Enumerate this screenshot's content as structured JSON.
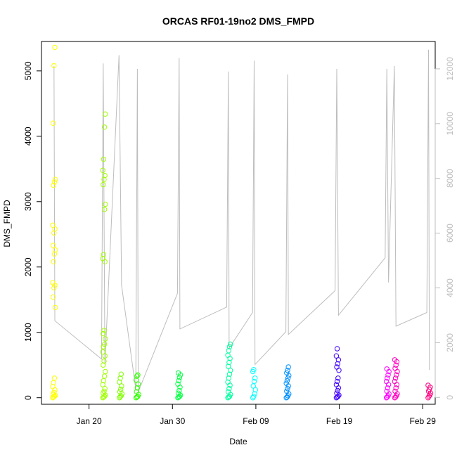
{
  "chart_data": {
    "type": "scatter",
    "title": "ORCAS RF01-19no2 DMS_FMPD",
    "xlabel": "Date",
    "ylabel": "DMS_FMPD",
    "x_tick_labels": [
      "Jan 20",
      "Jan 30",
      "Feb 09",
      "Feb 19",
      "Feb 29"
    ],
    "x_tick_days": [
      20,
      30,
      40,
      50,
      60
    ],
    "xlim_days": [
      14.3,
      61.5
    ],
    "ylim": [
      -100,
      5450
    ],
    "y_ticks": [
      0,
      1000,
      2000,
      3000,
      4000,
      5000
    ],
    "y2lim": [
      -250,
      13000
    ],
    "y2_ticks": [
      0,
      2000,
      4000,
      6000,
      8000,
      10000,
      12000
    ],
    "secondary_series_color": "#bdbdbd",
    "flights": [
      {
        "day": 15.8,
        "color": "#ffff00",
        "points": [
          0,
          10,
          20,
          35,
          50,
          80,
          120,
          170,
          230,
          300,
          1380,
          1540,
          1680,
          1720,
          1760,
          2080,
          2200,
          2260,
          2330,
          2520,
          2580,
          2640,
          3250,
          3300,
          3340,
          4200,
          5080,
          5360
        ]
      },
      {
        "day": 21.8,
        "color": "#a0ff00",
        "points": [
          0,
          10,
          20,
          40,
          70,
          100,
          140,
          200,
          260,
          330,
          400,
          500,
          560,
          640,
          700,
          780,
          820,
          900,
          980,
          1030,
          2080,
          2130,
          2190,
          2880,
          2960,
          3260,
          3340,
          3400,
          3480,
          3650,
          4140,
          4340
        ]
      },
      {
        "day": 23.8,
        "color": "#80ff00",
        "points": [
          0,
          15,
          30,
          60,
          90,
          130,
          180,
          240,
          300,
          360
        ]
      },
      {
        "day": 25.8,
        "color": "#30ff00",
        "points": [
          0,
          10,
          20,
          50,
          90,
          150,
          210,
          270,
          330,
          350
        ]
      },
      {
        "day": 30.8,
        "color": "#00ff40",
        "points": [
          0,
          10,
          20,
          40,
          70,
          110,
          160,
          210,
          260,
          310,
          350,
          380
        ]
      },
      {
        "day": 36.8,
        "color": "#00ffa0",
        "points": [
          0,
          10,
          20,
          50,
          90,
          140,
          190,
          240,
          300,
          360,
          420,
          480,
          540,
          600,
          650,
          720,
          780,
          820
        ]
      },
      {
        "day": 39.8,
        "color": "#00ffff",
        "points": [
          0,
          20,
          60,
          120,
          180,
          250,
          300,
          400,
          430
        ]
      },
      {
        "day": 43.8,
        "color": "#0090ff",
        "points": [
          0,
          10,
          30,
          60,
          100,
          140,
          180,
          220,
          260,
          300,
          340,
          380,
          420,
          470
        ]
      },
      {
        "day": 49.8,
        "color": "#4000ff",
        "points": [
          0,
          10,
          20,
          40,
          70,
          110,
          150,
          200,
          250,
          300,
          420,
          470,
          520,
          580,
          640,
          750
        ]
      },
      {
        "day": 55.8,
        "color": "#ff00ff",
        "points": [
          0,
          10,
          30,
          60,
          100,
          150,
          200,
          250,
          300,
          350,
          400,
          440
        ]
      },
      {
        "day": 56.8,
        "color": "#ff00c0",
        "points": [
          0,
          10,
          30,
          60,
          100,
          150,
          200,
          250,
          300,
          350,
          400,
          450,
          500,
          550,
          580
        ]
      },
      {
        "day": 60.8,
        "color": "#ff0080",
        "points": [
          0,
          20,
          40,
          70,
          100,
          130,
          160,
          190
        ]
      }
    ],
    "secondary_series": [
      {
        "day": 15.8,
        "y2": 12100
      },
      {
        "day": 15.9,
        "y2": 2800
      },
      {
        "day": 21.5,
        "y2": 1400
      },
      {
        "day": 21.7,
        "y2": 12200
      },
      {
        "day": 21.9,
        "y2": 1200
      },
      {
        "day": 23.6,
        "y2": 12500
      },
      {
        "day": 23.9,
        "y2": 4100
      },
      {
        "day": 25.6,
        "y2": 300
      },
      {
        "day": 25.8,
        "y2": 12000
      },
      {
        "day": 25.9,
        "y2": 200
      },
      {
        "day": 30.6,
        "y2": 3800
      },
      {
        "day": 30.8,
        "y2": 12400
      },
      {
        "day": 30.9,
        "y2": 2500
      },
      {
        "day": 36.5,
        "y2": 3300
      },
      {
        "day": 36.7,
        "y2": 11900
      },
      {
        "day": 36.8,
        "y2": 1800
      },
      {
        "day": 39.6,
        "y2": 3100
      },
      {
        "day": 39.8,
        "y2": 12300
      },
      {
        "day": 39.9,
        "y2": 1200
      },
      {
        "day": 43.6,
        "y2": 2400
      },
      {
        "day": 43.8,
        "y2": 11800
      },
      {
        "day": 43.9,
        "y2": 2300
      },
      {
        "day": 49.5,
        "y2": 3900
      },
      {
        "day": 49.7,
        "y2": 12000
      },
      {
        "day": 49.9,
        "y2": 3000
      },
      {
        "day": 55.5,
        "y2": 5100
      },
      {
        "day": 55.7,
        "y2": 12000
      },
      {
        "day": 55.9,
        "y2": 4200
      },
      {
        "day": 56.6,
        "y2": 12100
      },
      {
        "day": 56.8,
        "y2": 2600
      },
      {
        "day": 60.5,
        "y2": 3100
      },
      {
        "day": 60.7,
        "y2": 12700
      },
      {
        "day": 60.8,
        "y2": 1000
      }
    ]
  }
}
